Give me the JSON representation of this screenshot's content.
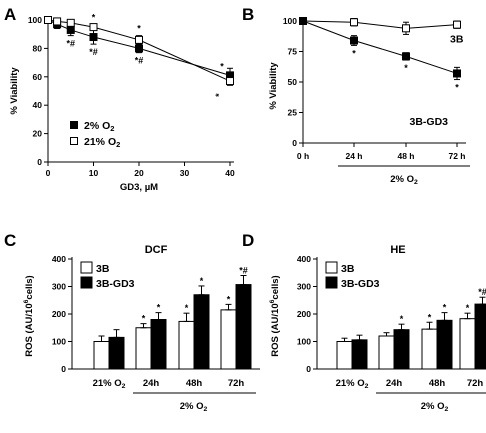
{
  "panels": {
    "a": {
      "letter": "A"
    },
    "b": {
      "letter": "B"
    },
    "c": {
      "letter": "C"
    },
    "d": {
      "letter": "D"
    }
  },
  "chart_data": [
    {
      "panel": "A",
      "type": "line",
      "xlabel": "GD3, µM",
      "ylabel": "% Viability",
      "xlim": [
        0,
        40
      ],
      "ylim": [
        0,
        100
      ],
      "xticks": [
        0,
        10,
        20,
        30,
        40
      ],
      "yticks": [
        0,
        20,
        40,
        60,
        80,
        100
      ],
      "legend": {
        "position": "bottom-left",
        "entries": [
          "2% O2",
          "21% O2"
        ]
      },
      "series": [
        {
          "name": "2% O2",
          "marker": "filled-square",
          "x": [
            0,
            2,
            5,
            10,
            20,
            40
          ],
          "y": [
            100,
            97,
            93,
            88,
            80,
            61
          ],
          "err": [
            0,
            3,
            4,
            5,
            3,
            5
          ],
          "labels": [
            "",
            "",
            "*#",
            "*#",
            "*#",
            "*"
          ]
        },
        {
          "name": "21% O2",
          "marker": "open-square",
          "x": [
            0,
            2,
            5,
            10,
            20,
            40
          ],
          "y": [
            100,
            99,
            98,
            95,
            86,
            57
          ],
          "err": [
            0,
            2,
            2,
            2,
            3,
            3
          ],
          "labels": [
            "",
            "",
            "",
            "*",
            "*",
            "*"
          ]
        }
      ]
    },
    {
      "panel": "B",
      "type": "line",
      "ylabel": "% Viability",
      "categories": [
        "0 h",
        "24 h",
        "48 h",
        "72 h"
      ],
      "bracket_label": "2% O2",
      "ylim": [
        0,
        100
      ],
      "yticks": [
        0,
        25,
        50,
        75,
        100
      ],
      "series": [
        {
          "name": "3B",
          "marker": "open-square",
          "values": [
            100,
            99,
            94,
            97
          ],
          "err": [
            0,
            3,
            5,
            3
          ],
          "labels": [
            "",
            "",
            "",
            ""
          ]
        },
        {
          "name": "3B-GD3",
          "marker": "filled-square",
          "values": [
            100,
            84,
            71,
            57
          ],
          "err": [
            0,
            4,
            3,
            5
          ],
          "labels": [
            "",
            "*",
            "*",
            "*"
          ]
        }
      ]
    },
    {
      "panel": "C",
      "type": "bar",
      "title": "DCF",
      "ylabel": "ROS (AU/10^6cells)",
      "categories": [
        "21% O2",
        "24h",
        "48h",
        "72h"
      ],
      "bracket_label": "2% O2",
      "ylim": [
        0,
        400
      ],
      "yticks": [
        0,
        100,
        200,
        300,
        400
      ],
      "legend": {
        "position": "top-left",
        "entries": [
          "3B",
          "3B-GD3"
        ]
      },
      "series": [
        {
          "name": "3B",
          "fill": "#ffffff",
          "values": [
            100,
            150,
            173,
            215
          ],
          "err": [
            20,
            15,
            30,
            20
          ],
          "labels": [
            "",
            "*",
            "*",
            "*"
          ]
        },
        {
          "name": "3B-GD3",
          "fill": "#000000",
          "values": [
            115,
            180,
            270,
            307
          ],
          "err": [
            28,
            25,
            32,
            33
          ],
          "labels": [
            "",
            "*",
            "*",
            "*#"
          ]
        }
      ]
    },
    {
      "panel": "D",
      "type": "bar",
      "title": "HE",
      "ylabel": "ROS (AU/10^6cells)",
      "categories": [
        "21% O2",
        "24h",
        "48h",
        "72h"
      ],
      "bracket_label": "2% O2",
      "ylim": [
        0,
        400
      ],
      "yticks": [
        0,
        100,
        200,
        300,
        400
      ],
      "legend": {
        "position": "top-left",
        "entries": [
          "3B",
          "3B-GD3"
        ]
      },
      "series": [
        {
          "name": "3B",
          "fill": "#ffffff",
          "values": [
            100,
            120,
            145,
            183
          ],
          "err": [
            12,
            12,
            25,
            20
          ],
          "labels": [
            "",
            "",
            "*",
            "*"
          ]
        },
        {
          "name": "3B-GD3",
          "fill": "#000000",
          "values": [
            106,
            143,
            177,
            236
          ],
          "err": [
            17,
            20,
            28,
            25
          ],
          "labels": [
            "",
            "*",
            "*",
            "*#"
          ]
        }
      ]
    }
  ]
}
